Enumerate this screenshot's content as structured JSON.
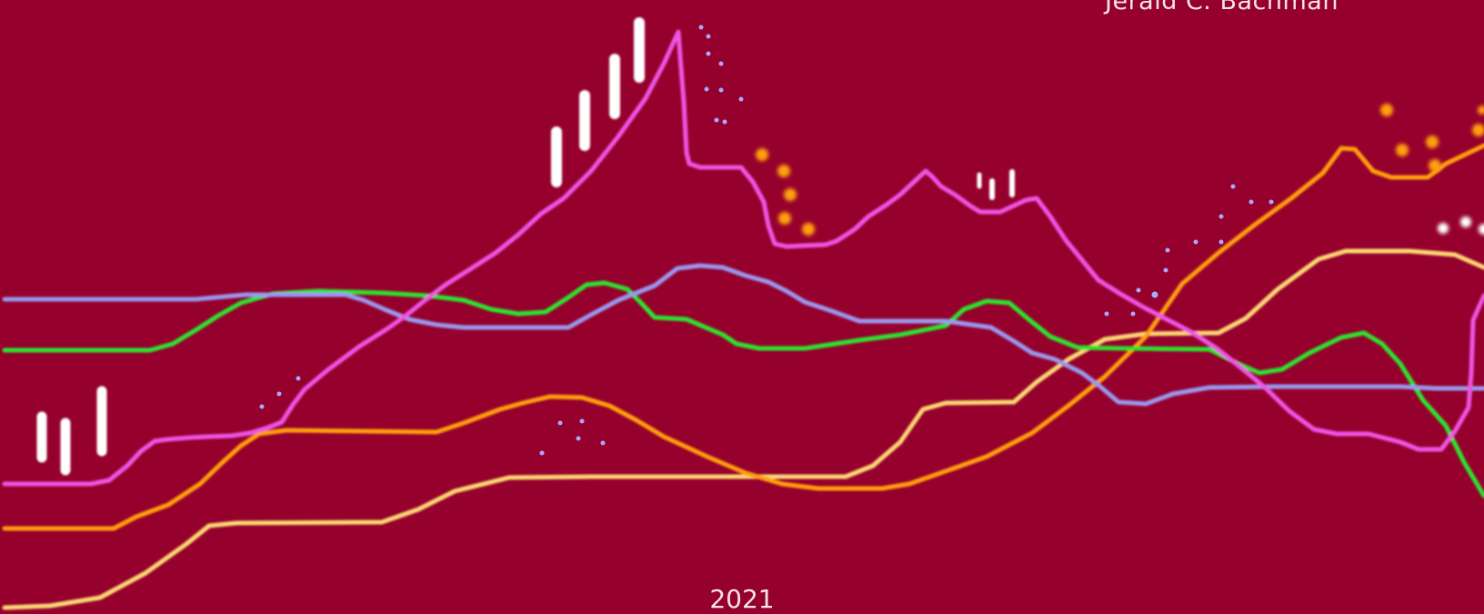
{
  "artwork": {
    "author": "Jerald C. Bachman",
    "year": "2021",
    "background_color": "#96002d",
    "line_colors": {
      "magenta": "#ee55e4",
      "lavender": "#9a98ee",
      "green": "#2de22d",
      "orange": "#ff9e08",
      "yellow": "#fcd872"
    },
    "mark_colors": {
      "capsules": "#ffffff",
      "orange_dots": "#ffa00a",
      "lavender_dots": "#a9a8ff",
      "white_dots": "#ffffff"
    }
  }
}
